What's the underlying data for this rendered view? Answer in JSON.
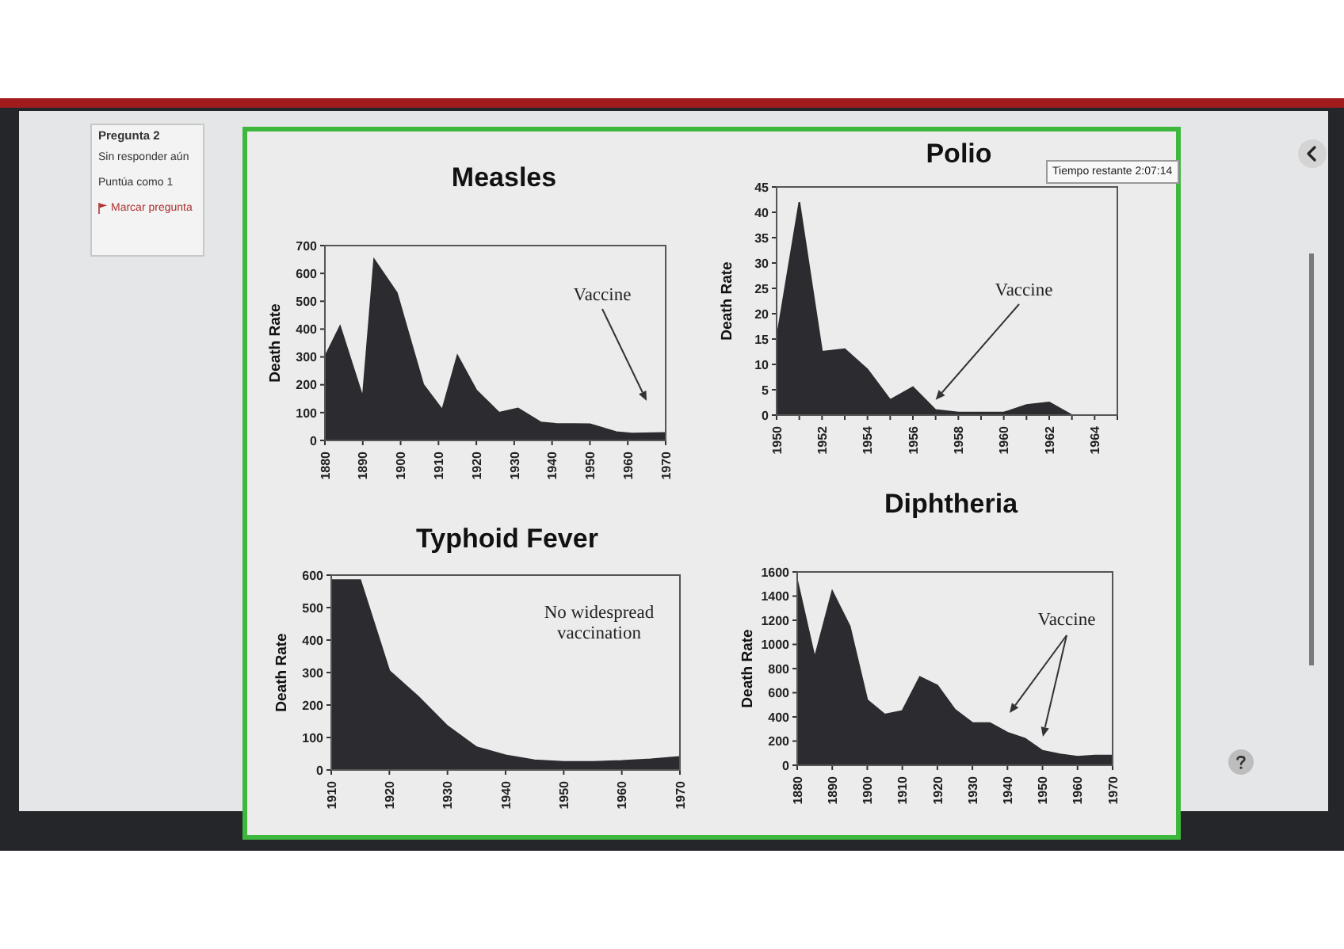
{
  "chart_data": [
    {
      "type": "other",
      "title": "Pregunta 2",
      "annotations": [
        "Sin responder aún",
        "Puntúa como 1",
        "Marcar pregunta"
      ]
    },
    {
      "type": "area",
      "title": "Measles",
      "ylabel": "Death Rate",
      "x": [
        1880,
        1884,
        1890,
        1893,
        1899,
        1906,
        1911,
        1915,
        1920,
        1926,
        1931,
        1937,
        1941,
        1950,
        1957,
        1961,
        1970
      ],
      "values": [
        300,
        410,
        155,
        650,
        530,
        200,
        110,
        305,
        180,
        100,
        115,
        65,
        60,
        58,
        30,
        25,
        27
      ],
      "color": "#2c2c30",
      "xlim": [
        1880,
        1970
      ],
      "xticks": [
        1880,
        1890,
        1900,
        1910,
        1920,
        1930,
        1940,
        1950,
        1960,
        1970
      ],
      "ylim": [
        0,
        700
      ],
      "yticks": [
        0,
        100,
        200,
        300,
        400,
        500,
        600,
        700
      ],
      "annotations": [
        "Vaccine"
      ]
    },
    {
      "type": "area",
      "title": "Polio",
      "ylabel": "Death Rate",
      "x": [
        1950,
        1951,
        1952,
        1953,
        1954,
        1955,
        1956,
        1957,
        1958,
        1959,
        1960,
        1961,
        1962,
        1963,
        1964,
        1965
      ],
      "values": [
        15,
        42,
        12.5,
        13,
        9,
        3,
        5.5,
        1,
        0.5,
        0.5,
        0.5,
        2,
        2.5,
        0,
        0,
        0
      ],
      "color": "#2c2c30",
      "xlim": [
        1950,
        1965
      ],
      "xticks": [
        1950,
        {
          "value": 1951,
          "label": null
        },
        1952,
        {
          "value": 1953,
          "label": null
        },
        1954,
        {
          "value": 1955,
          "label": null
        },
        1956,
        {
          "value": 1957,
          "label": null
        },
        1958,
        {
          "value": 1959,
          "label": null
        },
        1960,
        {
          "value": 1961,
          "label": null
        },
        1962,
        {
          "value": 1963,
          "label": null
        },
        1964,
        {
          "value": 1965,
          "label": null
        }
      ],
      "ylim": [
        0,
        45
      ],
      "yticks": [
        0,
        5,
        10,
        15,
        20,
        25,
        30,
        35,
        40,
        45
      ],
      "annotations": [
        {
          "text": "Vaccine",
          "x": 1957,
          "y": 3
        }
      ]
    },
    {
      "type": "other",
      "annotations": [
        "Tiempo restante 2:07:14"
      ]
    },
    {
      "type": "area",
      "title": "Typhoid Fever",
      "ylabel": "Death Rate",
      "x": [
        1910,
        1915,
        1920,
        1925,
        1930,
        1935,
        1940,
        1945,
        1950,
        1955,
        1960,
        1965,
        1970
      ],
      "values": [
        585,
        585,
        305,
        225,
        135,
        70,
        45,
        30,
        25,
        25,
        28,
        33,
        40
      ],
      "color": "#2c2c30",
      "xlim": [
        1910,
        1970
      ],
      "xticks": [
        1910,
        1920,
        1930,
        1940,
        1950,
        1960,
        1970
      ],
      "ylim": [
        0,
        600
      ],
      "yticks": [
        0,
        100,
        200,
        300,
        400,
        500,
        600
      ],
      "annotations": [
        "No widespread vaccination"
      ]
    },
    {
      "type": "area",
      "title": "Diphtheria",
      "ylabel": "Death Rate",
      "x": [
        1880,
        1885,
        1890,
        1895,
        1900,
        1905,
        1910,
        1915,
        1920,
        1925,
        1930,
        1935,
        1940,
        1945,
        1950,
        1955,
        1960,
        1965,
        1970
      ],
      "values": [
        1530,
        890,
        1440,
        1150,
        540,
        420,
        450,
        730,
        660,
        460,
        350,
        350,
        270,
        220,
        120,
        90,
        70,
        80,
        80
      ],
      "color": "#2c2c30",
      "xlim": [
        1880,
        1970
      ],
      "xticks": [
        1880,
        1890,
        1900,
        1910,
        1920,
        1930,
        1940,
        1950,
        1960,
        1970
      ],
      "ylim": [
        0,
        1600
      ],
      "yticks": [
        0,
        200,
        400,
        600,
        800,
        1000,
        1200,
        1400,
        1600
      ],
      "annotations": [
        "Vaccine"
      ]
    }
  ]
}
